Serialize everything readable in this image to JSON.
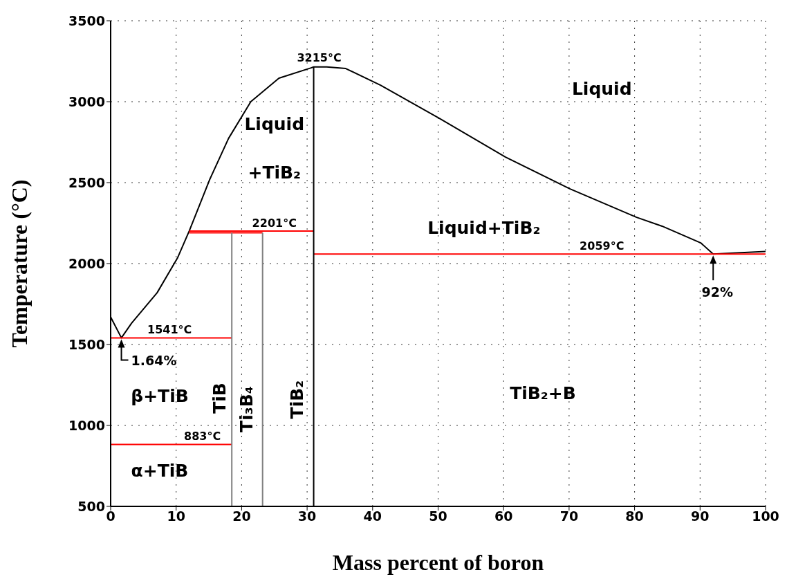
{
  "chart_data": {
    "type": "line",
    "xlabel": "Mass percent of boron",
    "ylabel": "Temperature (°C)",
    "xlim": [
      0,
      100
    ],
    "xticks": [
      0,
      10,
      20,
      30,
      40,
      50,
      60,
      70,
      80,
      90,
      100
    ],
    "ylim": [
      500,
      3500
    ],
    "yticks": [
      500,
      1000,
      1500,
      2000,
      2500,
      3000,
      3500
    ],
    "grid": true,
    "marker": "none",
    "line_style": "solid",
    "series": [
      {
        "color": "#000000",
        "x": [
          0,
          1.64,
          3.2,
          7.1,
          10.2,
          12,
          15.1,
          18,
          21.4,
          25.7,
          30.6,
          31,
          33,
          35.9,
          41.2,
          50.2,
          60.3,
          70.1,
          80.3,
          84.2,
          90.1,
          92,
          100
        ],
        "values": [
          1670,
          1541,
          1632,
          1820,
          2034,
          2201,
          2517,
          2773,
          3000,
          3145,
          3209,
          3215,
          3215,
          3205,
          3102,
          2897,
          2658,
          2462,
          2286,
          2231,
          2128,
          2059,
          2075
        ]
      },
      {
        "color": "#ff0000",
        "x": [
          0,
          18.5
        ],
        "values": [
          1541,
          1541
        ]
      },
      {
        "color": "#ff0000",
        "x": [
          0,
          18.5
        ],
        "values": [
          883,
          883
        ]
      },
      {
        "color": "#ff0000",
        "x": [
          12,
          31
        ],
        "values": [
          2201,
          2201
        ]
      },
      {
        "color": "#ff0000",
        "x": [
          12,
          23.2
        ],
        "values": [
          2190,
          2190
        ]
      },
      {
        "color": "#ff0000",
        "x": [
          31,
          100
        ],
        "values": [
          2059,
          2059
        ]
      },
      {
        "color": "#808080",
        "x": [
          18.5,
          18.5
        ],
        "values": [
          500,
          2190
        ]
      },
      {
        "color": "#808080",
        "x": [
          23.2,
          23.2
        ],
        "values": [
          500,
          2190
        ]
      },
      {
        "color": "#000000",
        "x": [
          31,
          31
        ],
        "values": [
          500,
          3215
        ]
      }
    ],
    "annotations": [
      {
        "text": "3215°C",
        "x": 31,
        "y": 3215
      },
      {
        "text": "2201°C",
        "x": 25,
        "y": 2201
      },
      {
        "text": "1541°C",
        "x": 9,
        "y": 1541
      },
      {
        "text": "883°C",
        "x": 14,
        "y": 883
      },
      {
        "text": "2059°C",
        "x": 75,
        "y": 2059
      },
      {
        "text": "1.64%",
        "x": 1.64,
        "y": 1541
      },
      {
        "text": "92%",
        "x": 92,
        "y": 2059
      },
      "Liquid",
      "Liquid",
      "+TiB₂",
      "Liquid+TiB₂",
      "β+TiB",
      "α+TiB",
      "TiB₂+B",
      "TiB",
      "Ti₃B₄",
      "TiB₂"
    ]
  }
}
